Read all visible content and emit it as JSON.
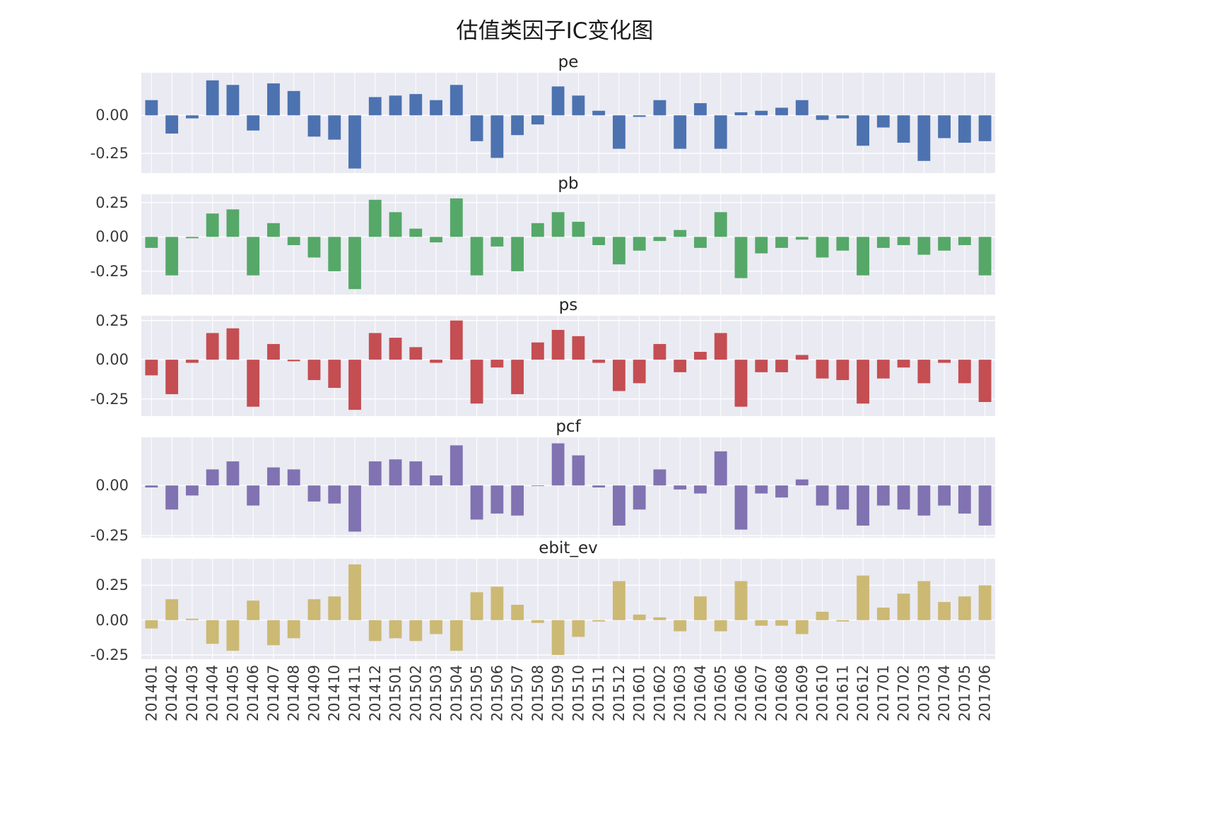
{
  "title": "估值类因子IC变化图",
  "chart_data": {
    "type": "bar",
    "title": "估值类因子IC变化图",
    "layout": "5 stacked subplots, shared x axis, seaborn darkgrid style",
    "grid": true,
    "legend_position": "none",
    "xlabel": "",
    "ylabel": "",
    "categories": [
      "201401",
      "201402",
      "201403",
      "201404",
      "201405",
      "201406",
      "201407",
      "201408",
      "201409",
      "201410",
      "201411",
      "201412",
      "201501",
      "201502",
      "201503",
      "201504",
      "201505",
      "201506",
      "201507",
      "201508",
      "201509",
      "201510",
      "201511",
      "201512",
      "201601",
      "201602",
      "201603",
      "201604",
      "201605",
      "201606",
      "201607",
      "201608",
      "201609",
      "201610",
      "201611",
      "201612",
      "201701",
      "201702",
      "201703",
      "201704",
      "201705",
      "201706"
    ],
    "series": [
      {
        "name": "pe",
        "color": "#4C72B0",
        "ylim": [
          -0.38,
          0.28
        ],
        "yticks": [
          0.0,
          -0.25
        ],
        "values": [
          0.1,
          -0.12,
          -0.02,
          0.23,
          0.2,
          -0.1,
          0.21,
          0.16,
          -0.14,
          -0.16,
          -0.35,
          0.12,
          0.13,
          0.14,
          0.1,
          0.2,
          -0.17,
          -0.28,
          -0.13,
          -0.06,
          0.19,
          0.13,
          0.03,
          -0.22,
          -0.01,
          0.1,
          -0.22,
          0.08,
          -0.22,
          0.02,
          0.03,
          0.05,
          0.1,
          -0.03,
          -0.02,
          -0.2,
          -0.08,
          -0.18,
          -0.3,
          -0.15,
          -0.18,
          -0.17
        ]
      },
      {
        "name": "pb",
        "color": "#55A868",
        "ylim": [
          -0.42,
          0.31
        ],
        "yticks": [
          0.25,
          0.0,
          -0.25
        ],
        "values": [
          -0.08,
          -0.28,
          -0.01,
          0.17,
          0.2,
          -0.28,
          0.1,
          -0.06,
          -0.15,
          -0.25,
          -0.38,
          0.27,
          0.18,
          0.06,
          -0.04,
          0.28,
          -0.28,
          -0.07,
          -0.25,
          0.1,
          0.18,
          0.11,
          -0.06,
          -0.2,
          -0.1,
          -0.03,
          0.05,
          -0.08,
          0.18,
          -0.3,
          -0.12,
          -0.08,
          -0.02,
          -0.15,
          -0.1,
          -0.28,
          -0.08,
          -0.06,
          -0.13,
          -0.1,
          -0.06,
          -0.28
        ]
      },
      {
        "name": "ps",
        "color": "#C44E52",
        "ylim": [
          -0.36,
          0.28
        ],
        "yticks": [
          0.25,
          0.0,
          -0.25
        ],
        "values": [
          -0.1,
          -0.22,
          -0.02,
          0.17,
          0.2,
          -0.3,
          0.1,
          -0.01,
          -0.13,
          -0.18,
          -0.32,
          0.17,
          0.14,
          0.08,
          -0.02,
          0.25,
          -0.28,
          -0.05,
          -0.22,
          0.11,
          0.19,
          0.15,
          -0.02,
          -0.2,
          -0.15,
          0.1,
          -0.08,
          0.05,
          0.17,
          -0.3,
          -0.08,
          -0.08,
          0.03,
          -0.12,
          -0.13,
          -0.28,
          -0.12,
          -0.05,
          -0.15,
          -0.02,
          -0.15,
          -0.27
        ]
      },
      {
        "name": "pcf",
        "color": "#8172B2",
        "ylim": [
          -0.26,
          0.24
        ],
        "yticks": [
          0.0,
          -0.25
        ],
        "values": [
          -0.01,
          -0.12,
          -0.05,
          0.08,
          0.12,
          -0.1,
          0.09,
          0.08,
          -0.08,
          -0.09,
          -0.23,
          0.12,
          0.13,
          0.12,
          0.05,
          0.2,
          -0.17,
          -0.14,
          -0.15,
          0.0,
          0.21,
          0.15,
          -0.01,
          -0.2,
          -0.12,
          0.08,
          -0.02,
          -0.04,
          0.17,
          -0.22,
          -0.04,
          -0.06,
          0.03,
          -0.1,
          -0.12,
          -0.2,
          -0.1,
          -0.12,
          -0.15,
          -0.1,
          -0.14,
          -0.2
        ]
      },
      {
        "name": "ebit_ev",
        "color": "#CCB974",
        "ylim": [
          -0.28,
          0.44
        ],
        "yticks": [
          0.25,
          0.0,
          -0.25
        ],
        "values": [
          -0.06,
          0.15,
          0.01,
          -0.17,
          -0.22,
          0.14,
          -0.18,
          -0.13,
          0.15,
          0.17,
          0.4,
          -0.15,
          -0.13,
          -0.15,
          -0.1,
          -0.22,
          0.2,
          0.24,
          0.11,
          -0.02,
          -0.25,
          -0.12,
          -0.01,
          0.28,
          0.04,
          0.02,
          -0.08,
          0.17,
          -0.08,
          0.28,
          -0.04,
          -0.04,
          -0.1,
          0.06,
          -0.01,
          0.32,
          0.09,
          0.19,
          0.28,
          0.13,
          0.17,
          0.25
        ]
      }
    ],
    "styles": {
      "panel_background": "#EAEAF2",
      "gridline_color": "#ffffff",
      "text_color": "#3a3a3a"
    }
  }
}
